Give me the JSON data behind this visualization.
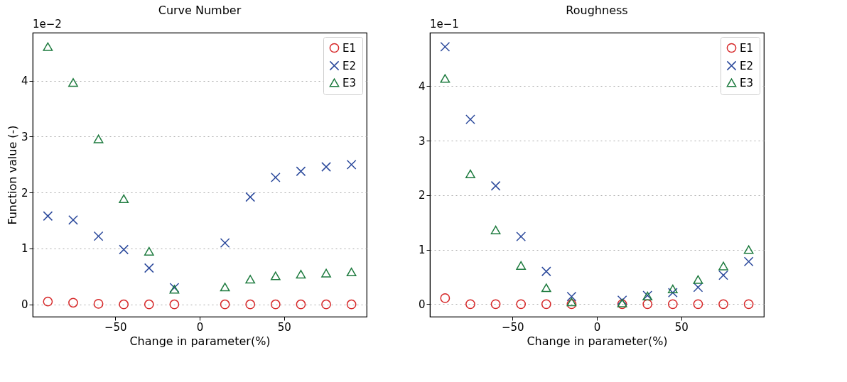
{
  "chart_data": [
    {
      "type": "scatter",
      "title": "Curve Number",
      "xlabel": "Change in parameter(%)",
      "ylabel": "Function value (-)",
      "annotations": [
        "1e−2"
      ],
      "x": [
        -90,
        -75,
        -60,
        -45,
        -30,
        -15,
        15,
        30,
        45,
        60,
        75,
        90
      ],
      "xlim": [
        -99,
        99
      ],
      "xticks": [
        -50,
        0,
        50
      ],
      "ylim": [
        -0.22,
        4.86
      ],
      "yticks": [
        0,
        1,
        2,
        3,
        4
      ],
      "grid": "y",
      "legend": "top right",
      "series": [
        {
          "name": "E1",
          "color": "#d62728",
          "marker": "circle",
          "values": [
            0.05,
            0.03,
            0.01,
            0,
            0,
            0,
            0,
            0,
            0,
            0,
            0,
            0
          ]
        },
        {
          "name": "E2",
          "color": "#2c4a9c",
          "marker": "cross",
          "values": [
            1.58,
            1.51,
            1.22,
            0.98,
            0.65,
            0.3,
            1.1,
            1.92,
            2.27,
            2.38,
            2.46,
            2.5
          ]
        },
        {
          "name": "E3",
          "color": "#1e7b3f",
          "marker": "triangle",
          "values": [
            4.61,
            3.97,
            2.96,
            1.89,
            0.95,
            0.27,
            0.31,
            0.45,
            0.51,
            0.54,
            0.56,
            0.58
          ]
        }
      ]
    },
    {
      "type": "scatter",
      "title": "Roughness",
      "xlabel": "Change in parameter(%)",
      "annotations": [
        "1e−1"
      ],
      "x": [
        -90,
        -75,
        -60,
        -45,
        -30,
        -15,
        15,
        30,
        45,
        60,
        75,
        90
      ],
      "xlim": [
        -99,
        99
      ],
      "xticks": [
        -50,
        0,
        50
      ],
      "ylim": [
        -0.23,
        4.98
      ],
      "yticks": [
        0,
        1,
        2,
        3,
        4
      ],
      "grid": "y",
      "legend": "top right",
      "series": [
        {
          "name": "E1",
          "color": "#d62728",
          "marker": "circle",
          "values": [
            0.11,
            0,
            0,
            0,
            0,
            0,
            0,
            0,
            0,
            0,
            0,
            0
          ]
        },
        {
          "name": "E2",
          "color": "#2c4a9c",
          "marker": "cross",
          "values": [
            4.72,
            3.39,
            2.17,
            1.24,
            0.6,
            0.14,
            0.07,
            0.16,
            0.21,
            0.31,
            0.53,
            0.78
          ]
        },
        {
          "name": "E3",
          "color": "#1e7b3f",
          "marker": "triangle",
          "values": [
            4.14,
            2.39,
            1.36,
            0.71,
            0.3,
            0.04,
            0.02,
            0.15,
            0.28,
            0.45,
            0.7,
            1.0
          ]
        }
      ]
    }
  ]
}
